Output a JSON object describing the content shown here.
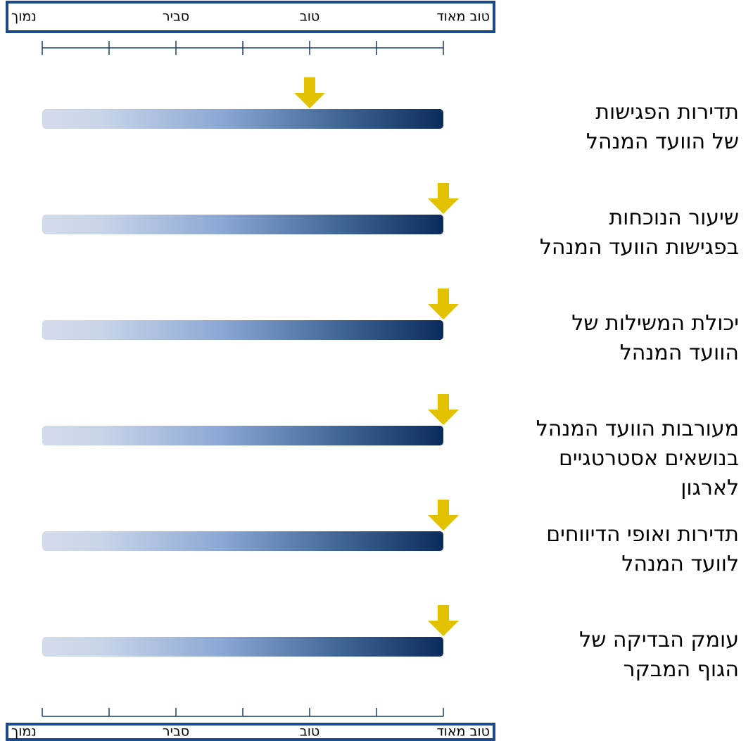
{
  "chart_data": {
    "type": "scale",
    "categories": [
      "תדירות הפגישות\nשל הוועד המנהל",
      "שיעור הנוכחות\nבפגישות הוועד המנהל",
      "יכולת המשילות של\nהוועד המנהל",
      "מעורבות הוועד המנהל\nבנושאים אסטרטגיים\nלארגון",
      "תדירות ואופי הדיווחים\nלוועד המנהל",
      "עומק הבדיקה של\nהגוף המבקר"
    ],
    "values": [
      2,
      3,
      3,
      3,
      3,
      3
    ],
    "xlim": [
      0,
      3
    ],
    "xticks": [
      0,
      0.5,
      1,
      1.5,
      2,
      2.5,
      3
    ],
    "xtick_labels": [
      {
        "value": 0,
        "label": "נמוך"
      },
      {
        "value": 1,
        "label": "סביר"
      },
      {
        "value": 2,
        "label": "טוב"
      },
      {
        "value": 3,
        "label": "טוב מאוד"
      }
    ],
    "color": "#e2c200"
  }
}
